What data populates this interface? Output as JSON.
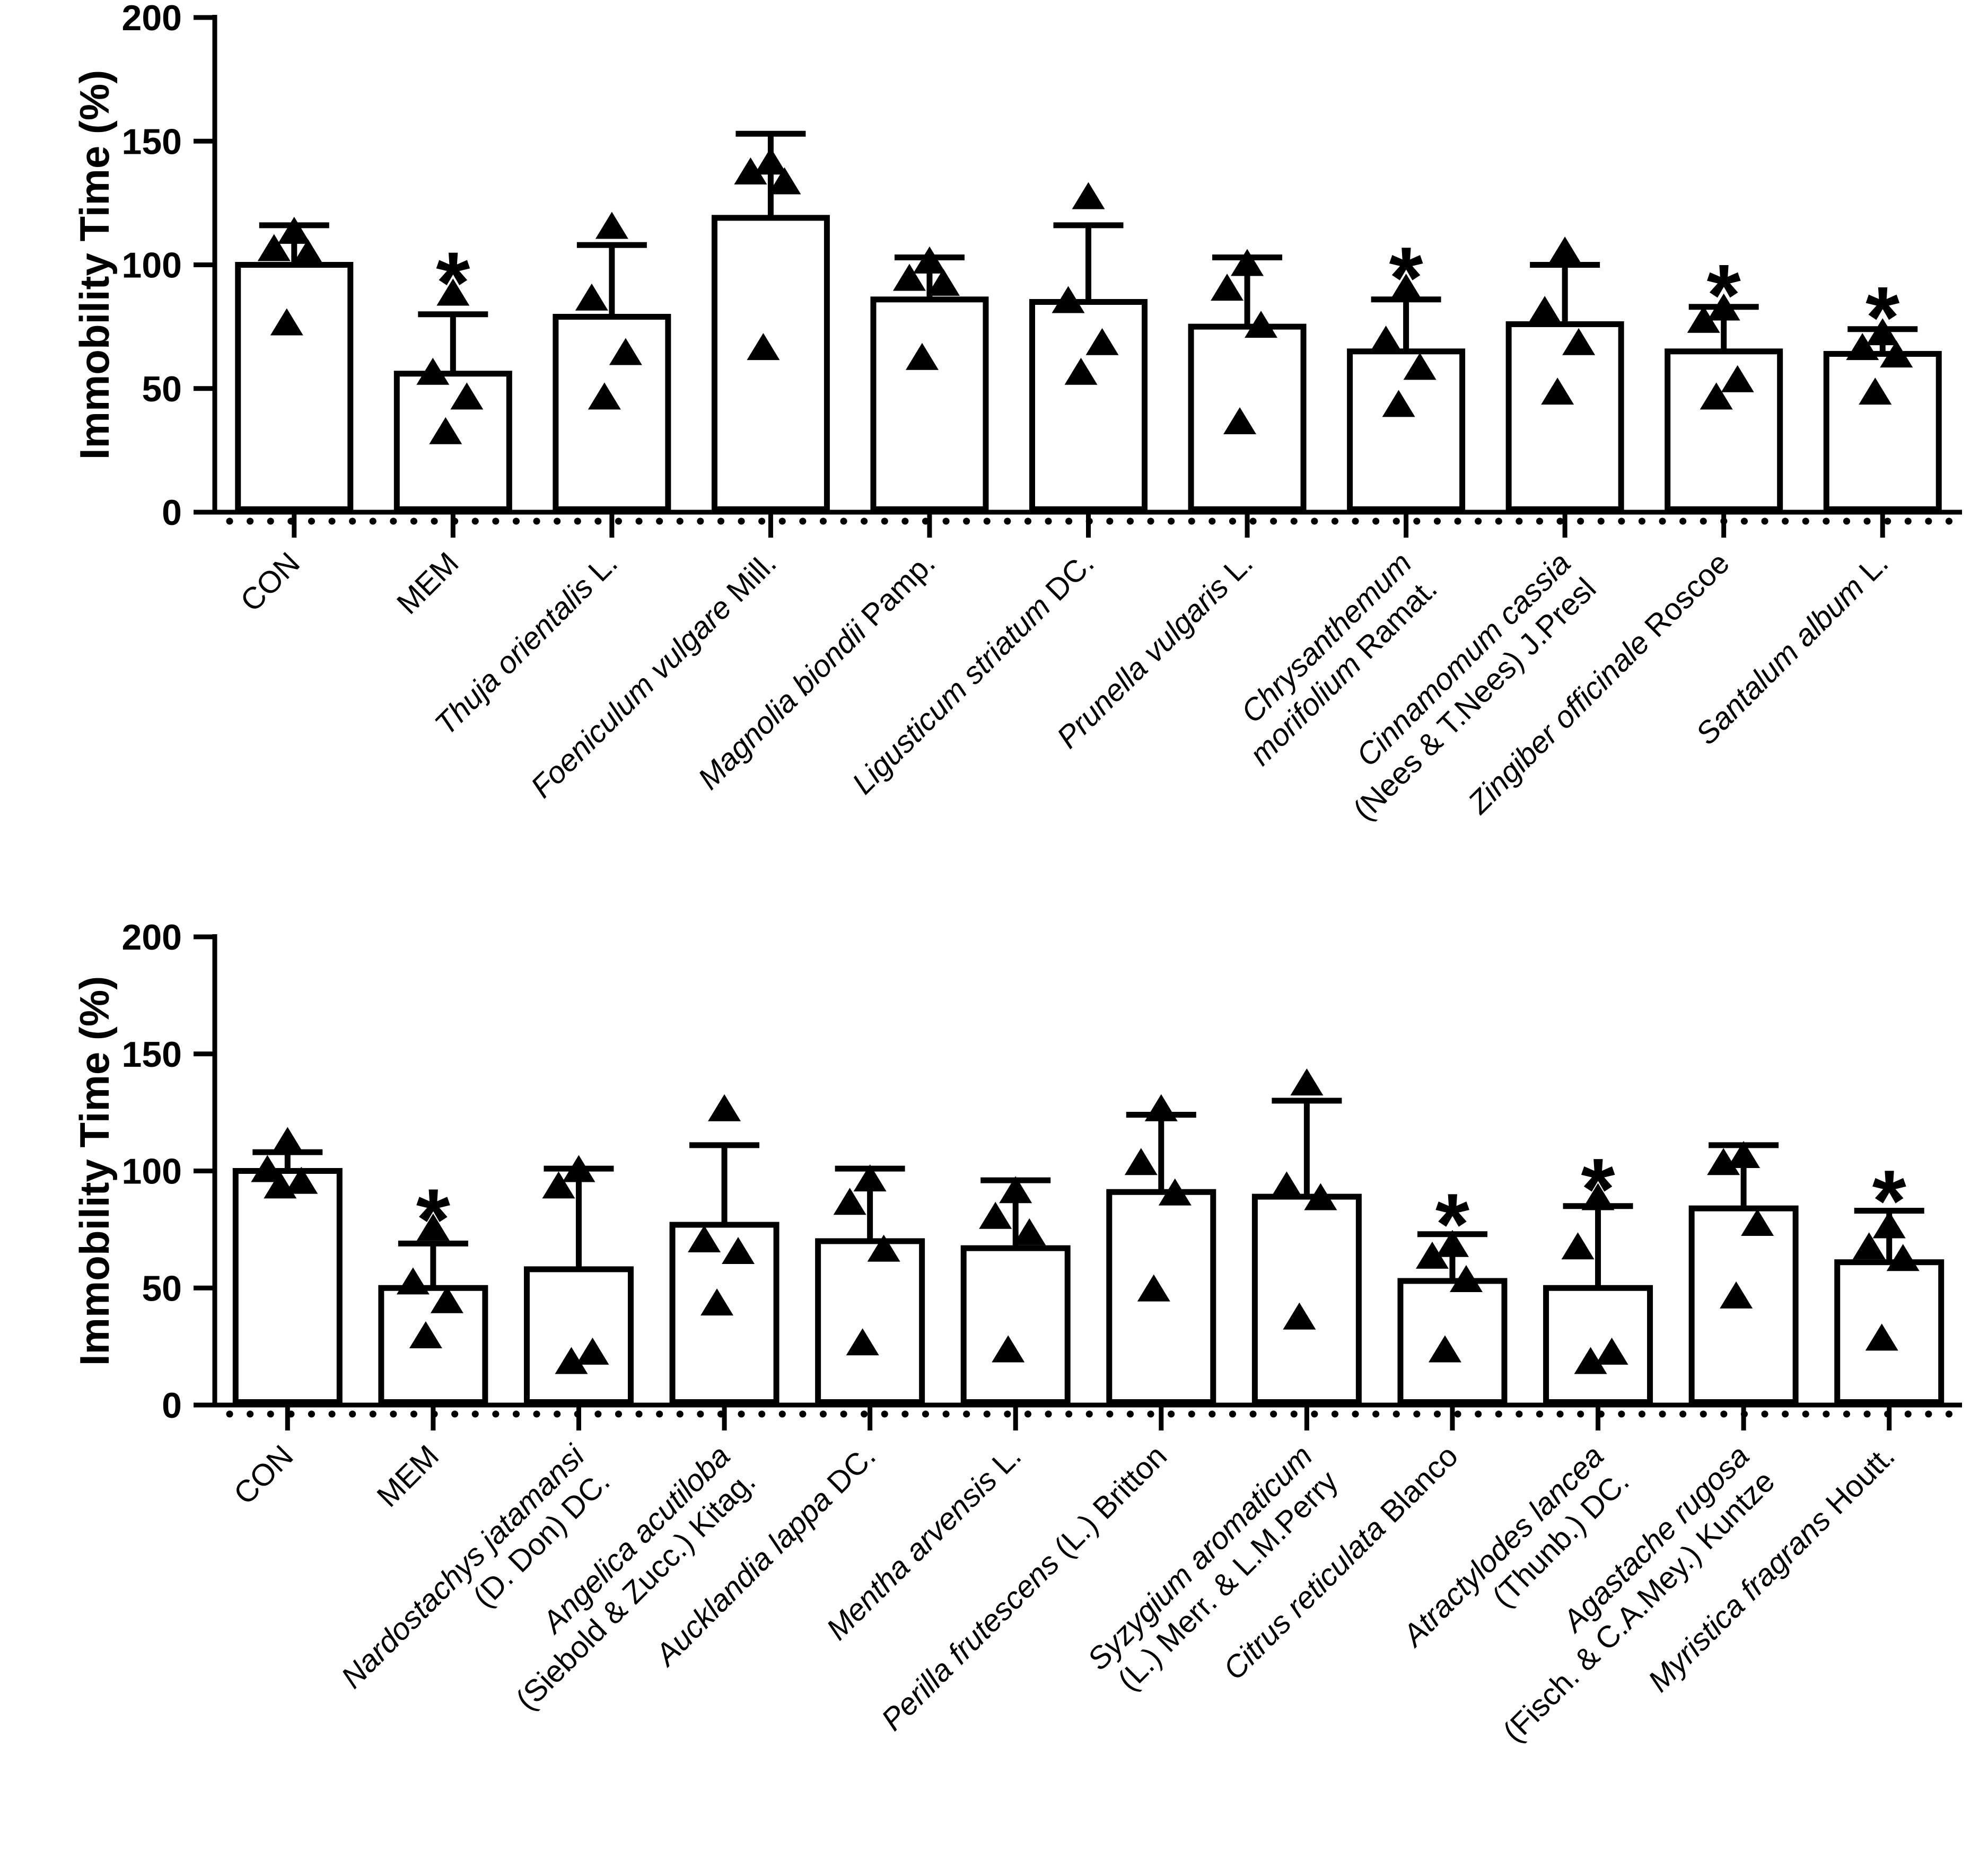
{
  "figure": {
    "background": "#ffffff",
    "ink_color": "#000000",
    "significance_marker": "*",
    "point_marker": "filled-triangle-up"
  },
  "chart_data": [
    {
      "type": "bar",
      "panel": "top",
      "title": "",
      "xlabel": "",
      "ylabel": "Immobility Time (%)",
      "ylim": [
        0,
        200
      ],
      "yticks": [
        0,
        50,
        100,
        150,
        200
      ],
      "grid": false,
      "legend": "none",
      "error_bars": "sd-upper-only",
      "groups": [
        {
          "label_lines": [
            [
              {
                "t": "CON",
                "i": false
              }
            ]
          ],
          "mean": 100,
          "sd_top": 116,
          "points": [
            113,
            106,
            104,
            76
          ],
          "sig": false
        },
        {
          "label_lines": [
            [
              {
                "t": "MEM",
                "i": false
              }
            ]
          ],
          "mean": 56,
          "sd_top": 80,
          "points": [
            88,
            56,
            46,
            32
          ],
          "sig": true
        },
        {
          "label_lines": [
            [
              {
                "t": "Thuja orientalis",
                "i": true
              },
              {
                "t": " L.",
                "i": false
              }
            ]
          ],
          "mean": 79,
          "sd_top": 108,
          "points": [
            115,
            86,
            64,
            46
          ],
          "sig": false
        },
        {
          "label_lines": [
            [
              {
                "t": "Foeniculum vulgare",
                "i": true
              },
              {
                "t": " Mill.",
                "i": false
              }
            ]
          ],
          "mean": 119,
          "sd_top": 153,
          "points": [
            141,
            137,
            133,
            66
          ],
          "sig": false
        },
        {
          "label_lines": [
            [
              {
                "t": "Magnolia biondii",
                "i": true
              },
              {
                "t": " Pamp.",
                "i": false
              }
            ]
          ],
          "mean": 86,
          "sd_top": 103,
          "points": [
            101,
            94,
            92,
            62
          ],
          "sig": false
        },
        {
          "label_lines": [
            [
              {
                "t": "Ligusticum striatum",
                "i": true
              },
              {
                "t": " DC.",
                "i": false
              }
            ]
          ],
          "mean": 85,
          "sd_top": 116,
          "points": [
            127,
            85,
            68,
            56
          ],
          "sig": false
        },
        {
          "label_lines": [
            [
              {
                "t": "Prunella vulgaris",
                "i": true
              },
              {
                "t": " L.",
                "i": false
              }
            ]
          ],
          "mean": 75,
          "sd_top": 103,
          "points": [
            100,
            90,
            75,
            36
          ],
          "sig": false
        },
        {
          "label_lines": [
            [
              {
                "t": "Chrysanthemum",
                "i": true
              }
            ],
            [
              {
                "t": "morifolium",
                "i": true
              },
              {
                "t": " Ramat.",
                "i": false
              }
            ]
          ],
          "mean": 65,
          "sd_top": 86,
          "points": [
            90,
            69,
            58,
            43
          ],
          "sig": true
        },
        {
          "label_lines": [
            [
              {
                "t": "Cinnamomum cassia",
                "i": true
              }
            ],
            [
              {
                "t": "(Nees & T.Nees) J.Presl",
                "i": false
              }
            ]
          ],
          "mean": 76,
          "sd_top": 100,
          "points": [
            105,
            81,
            68,
            48
          ],
          "sig": false
        },
        {
          "label_lines": [
            [
              {
                "t": "Zingiber officinale",
                "i": true
              },
              {
                "t": " Roscoe",
                "i": false
              }
            ]
          ],
          "mean": 65,
          "sd_top": 83,
          "points": [
            82,
            77,
            53,
            46
          ],
          "sig": true
        },
        {
          "label_lines": [
            [
              {
                "t": "Santalum album",
                "i": true
              },
              {
                "t": " L.",
                "i": false
              }
            ]
          ],
          "mean": 64,
          "sd_top": 74,
          "points": [
            72,
            66,
            63,
            48
          ],
          "sig": true
        }
      ]
    },
    {
      "type": "bar",
      "panel": "bottom",
      "title": "",
      "xlabel": "",
      "ylabel": "Immobility Time (%)",
      "ylim": [
        0,
        200
      ],
      "yticks": [
        0,
        50,
        100,
        150,
        200
      ],
      "grid": false,
      "legend": "none",
      "error_bars": "sd-upper-only",
      "groups": [
        {
          "label_lines": [
            [
              {
                "t": "CON",
                "i": false
              }
            ]
          ],
          "mean": 100,
          "sd_top": 108,
          "points": [
            112,
            100,
            95,
            93
          ],
          "sig": false
        },
        {
          "label_lines": [
            [
              {
                "t": "MEM",
                "i": false
              }
            ]
          ],
          "mean": 50,
          "sd_top": 69,
          "points": [
            75,
            52,
            44,
            29
          ],
          "sig": true
        },
        {
          "label_lines": [
            [
              {
                "t": "Nardostachys jatamansi",
                "i": true
              }
            ],
            [
              {
                "t": "(D. Don) DC.",
                "i": false
              }
            ]
          ],
          "mean": 58,
          "sd_top": 101,
          "points": [
            100,
            93,
            22,
            18
          ],
          "sig": false
        },
        {
          "label_lines": [
            [
              {
                "t": "Angelica acutiloba",
                "i": true
              }
            ],
            [
              {
                "t": "(Siebold & Zucc.) Kitag.",
                "i": false
              }
            ]
          ],
          "mean": 77,
          "sd_top": 111,
          "points": [
            126,
            70,
            65,
            43
          ],
          "sig": false
        },
        {
          "label_lines": [
            [
              {
                "t": "Aucklandia lappa",
                "i": true
              },
              {
                "t": " DC.",
                "i": false
              }
            ]
          ],
          "mean": 70,
          "sd_top": 101,
          "points": [
            96,
            86,
            66,
            26
          ],
          "sig": false
        },
        {
          "label_lines": [
            [
              {
                "t": "Mentha arvensis",
                "i": true
              },
              {
                "t": " L.",
                "i": false
              }
            ]
          ],
          "mean": 67,
          "sd_top": 96,
          "points": [
            91,
            80,
            73,
            23
          ],
          "sig": false
        },
        {
          "label_lines": [
            [
              {
                "t": "Perilla frutescens",
                "i": true
              },
              {
                "t": " (L.) Britton",
                "i": false
              }
            ]
          ],
          "mean": 91,
          "sd_top": 124,
          "points": [
            126,
            103,
            90,
            49
          ],
          "sig": false
        },
        {
          "label_lines": [
            [
              {
                "t": "Syzygium aromaticum",
                "i": true
              }
            ],
            [
              {
                "t": "(L.) Merr. & L.M.Perry",
                "i": false
              }
            ]
          ],
          "mean": 89,
          "sd_top": 130,
          "points": [
            137,
            93,
            88,
            37
          ],
          "sig": false
        },
        {
          "label_lines": [
            [
              {
                "t": "Citrus reticulata",
                "i": true
              },
              {
                "t": " Blanco",
                "i": false
              }
            ]
          ],
          "mean": 53,
          "sd_top": 73,
          "points": [
            68,
            63,
            53,
            23
          ],
          "sig": true
        },
        {
          "label_lines": [
            [
              {
                "t": "Atractylodes lancea",
                "i": true
              }
            ],
            [
              {
                "t": "(Thunb.) DC.",
                "i": false
              }
            ]
          ],
          "mean": 50,
          "sd_top": 85,
          "points": [
            88,
            67,
            22,
            18
          ],
          "sig": true
        },
        {
          "label_lines": [
            [
              {
                "t": "Agastache rugosa",
                "i": true
              }
            ],
            [
              {
                "t": "(Fisch. & C.A.Mey.) Kuntze",
                "i": false
              }
            ]
          ],
          "mean": 84,
          "sd_top": 111,
          "points": [
            106,
            103,
            77,
            46
          ],
          "sig": false
        },
        {
          "label_lines": [
            [
              {
                "t": "Myristica fragrans",
                "i": true
              },
              {
                "t": " Houtt.",
                "i": false
              }
            ]
          ],
          "mean": 61,
          "sd_top": 83,
          "points": [
            76,
            67,
            62,
            28
          ],
          "sig": true
        }
      ]
    }
  ]
}
